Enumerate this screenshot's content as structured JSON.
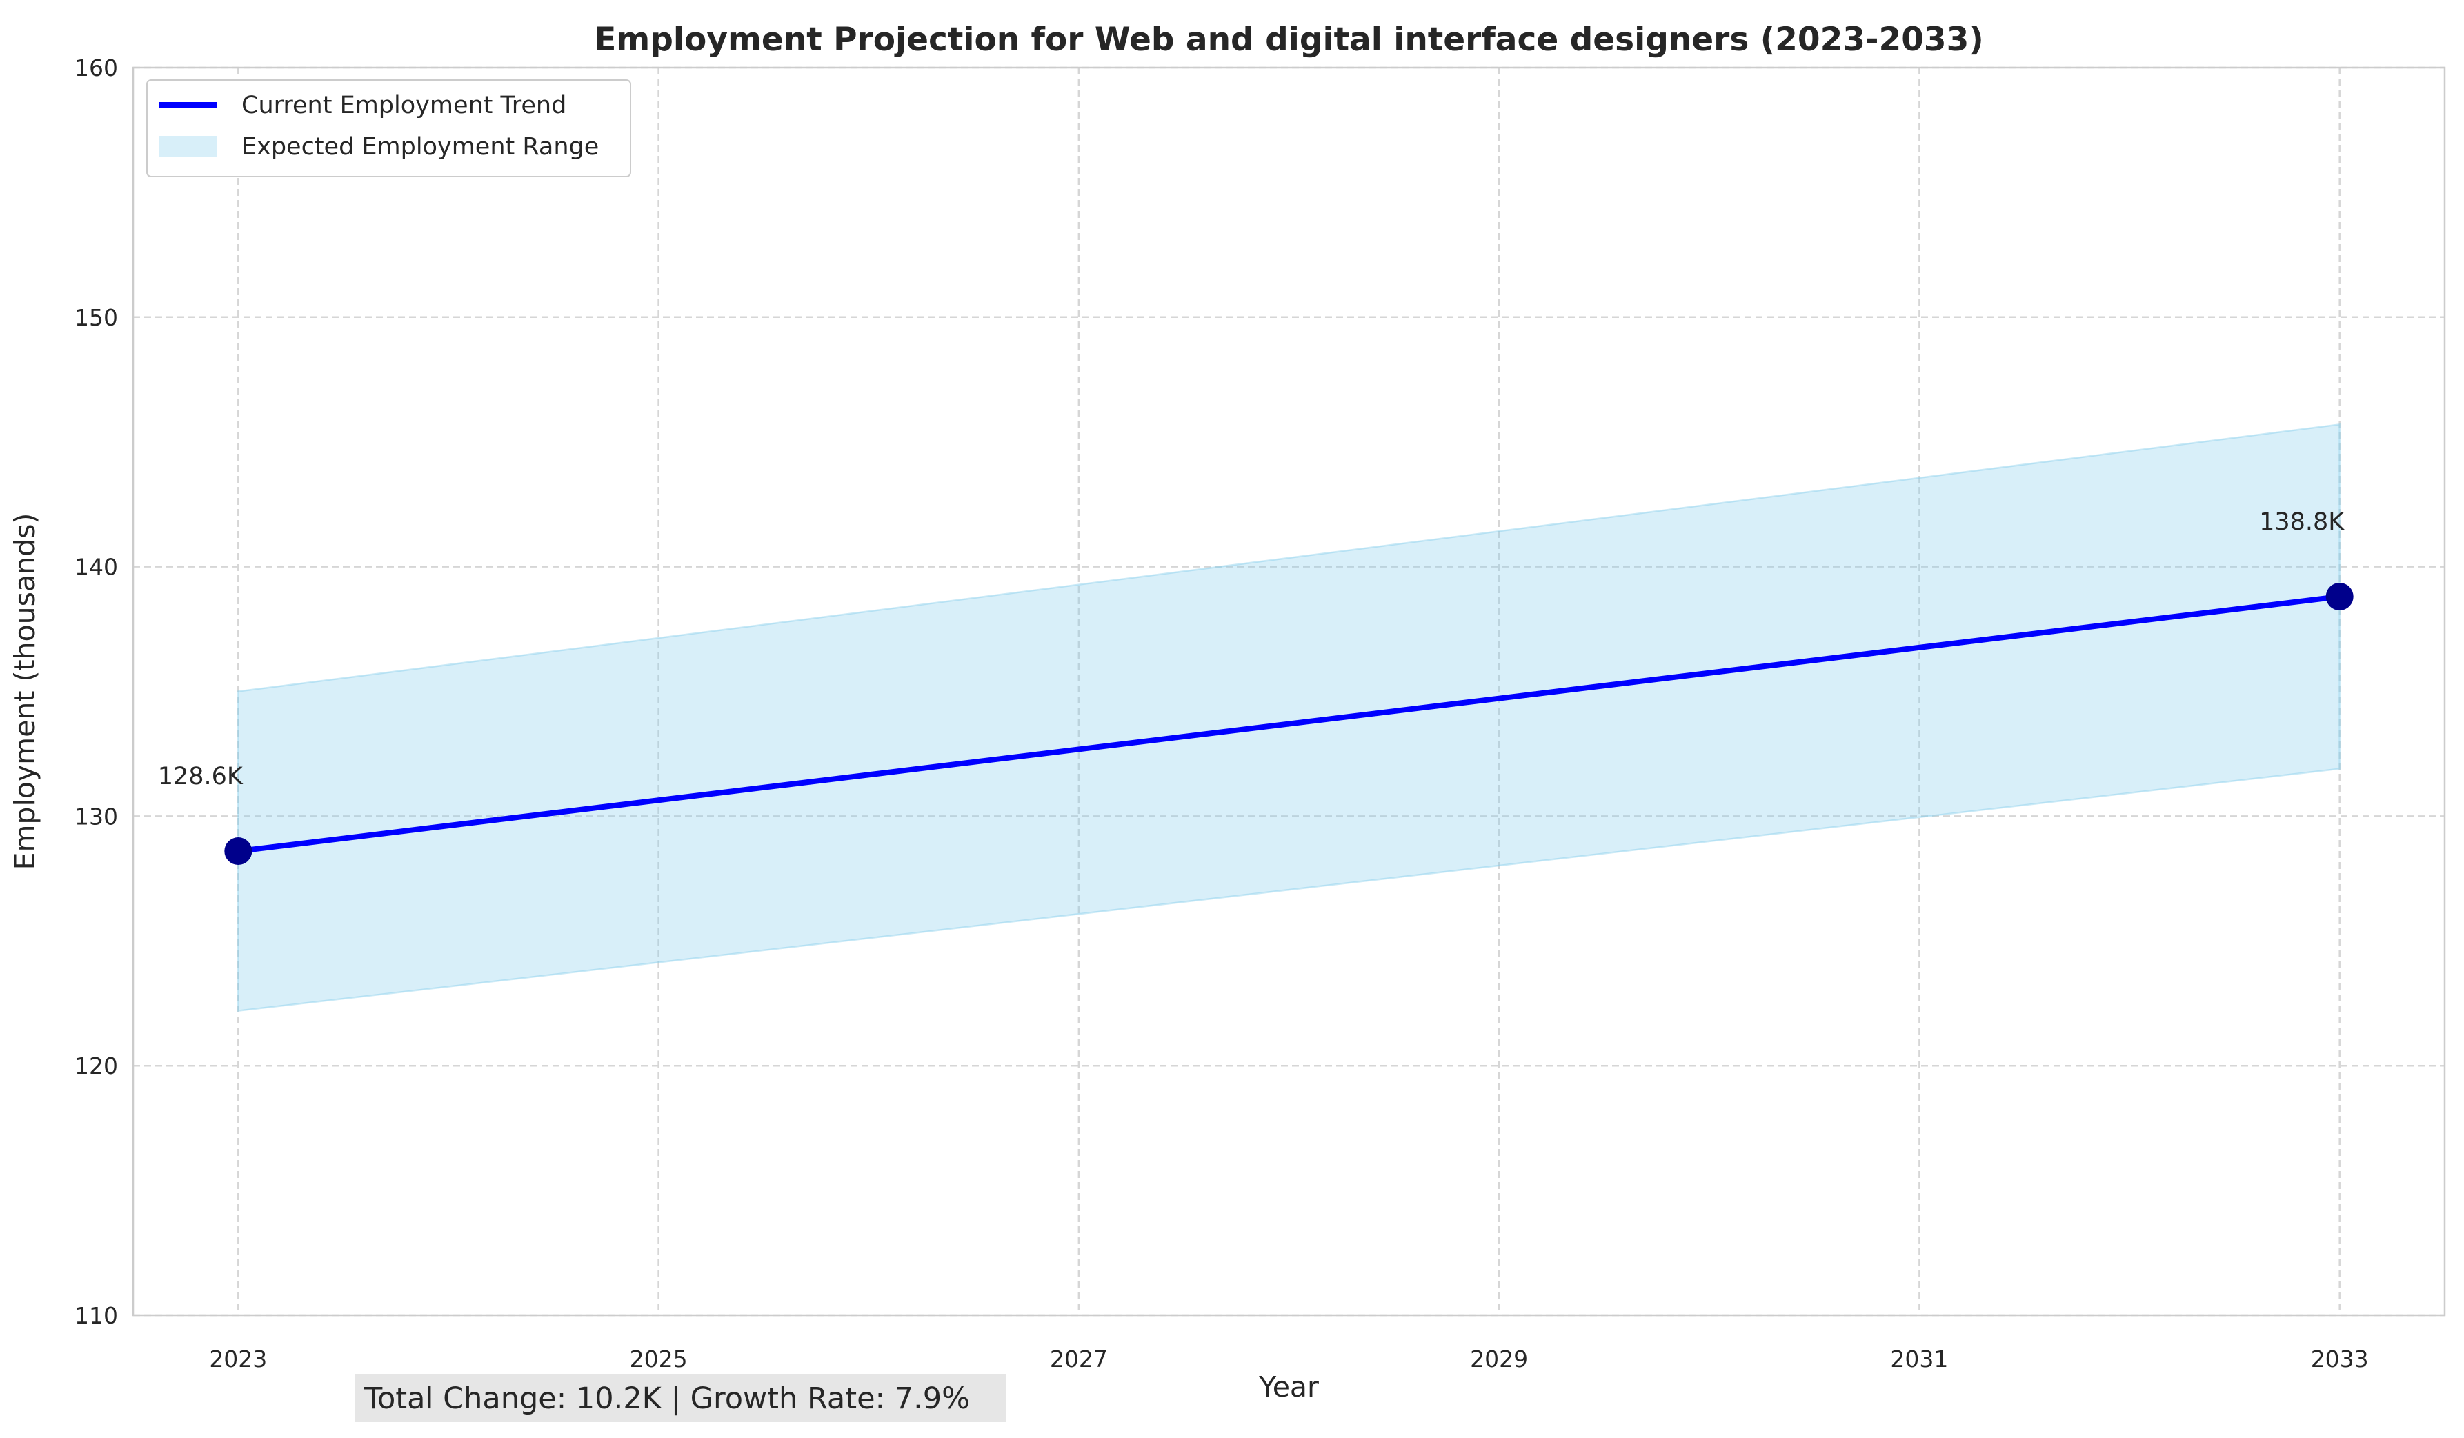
{
  "chart_data": {
    "type": "line",
    "title": "Employment Projection for Web and digital interface designers (2023-2033)",
    "xlabel": "Year",
    "ylabel": "Employment (thousands)",
    "xlim": [
      2022.5,
      2033.5
    ],
    "ylim": [
      110,
      160
    ],
    "xticks": [
      "2023",
      "2025",
      "2027",
      "2029",
      "2031",
      "2033"
    ],
    "yticks": [
      "110",
      "120",
      "130",
      "140",
      "150",
      "160"
    ],
    "grid": true,
    "legend_position": "upper-left",
    "series": [
      {
        "name": "Current Employment Trend",
        "color": "#0000ff",
        "marker_color": "#00008b",
        "x": [
          2023,
          2033
        ],
        "y": [
          128.6,
          138.8
        ]
      }
    ],
    "range": {
      "name": "Expected Employment Range",
      "color": "#87ceeb",
      "x": [
        2023,
        2033
      ],
      "upper": [
        135.0,
        145.7
      ],
      "lower": [
        122.2,
        131.9
      ]
    },
    "annotations": [
      "128.6K",
      "138.8K"
    ],
    "stats_text": "Total Change: 10.2K | Growth Rate: 7.9%"
  }
}
